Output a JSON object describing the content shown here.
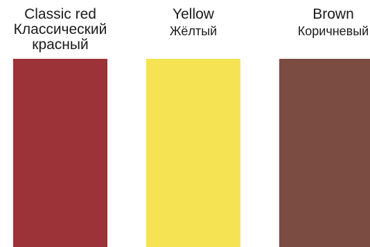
{
  "swatches": [
    {
      "name_en": "Classic red",
      "name_ru": "Классический красный",
      "color": "#9c3338"
    },
    {
      "name_en": "Yellow",
      "name_ru": "Жёлтый",
      "color": "#f6e354"
    },
    {
      "name_en": "Brown",
      "name_ru": "Коричневый",
      "color": "#7a4c42"
    }
  ]
}
